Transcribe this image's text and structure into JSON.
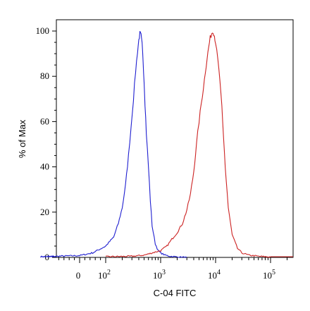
{
  "chart_data": {
    "type": "line",
    "title": "",
    "xlabel": "C-04 FITC",
    "ylabel": "% of Max",
    "xscale": "biexponential",
    "xlim": [
      -200,
      200000
    ],
    "ylim": [
      0,
      102
    ],
    "grid": false,
    "legend": "none",
    "y_ticks": [
      "0",
      "20",
      "40",
      "60",
      "80",
      "100"
    ],
    "y_tick_values": [
      0,
      20,
      40,
      60,
      80,
      100
    ],
    "x_ticks": [
      {
        "value": 0,
        "base": "0",
        "exp": ""
      },
      {
        "value": 100,
        "base": "10",
        "exp": "2"
      },
      {
        "value": 1000,
        "base": "10",
        "exp": "3"
      },
      {
        "value": 10000,
        "base": "10",
        "exp": "4"
      },
      {
        "value": 100000,
        "base": "10",
        "exp": "5"
      }
    ],
    "series": [
      {
        "color": "#1f1fd0",
        "x": [
          -150,
          0,
          50,
          100,
          140,
          170,
          200,
          230,
          260,
          290,
          320,
          350,
          380,
          400,
          420,
          440,
          460,
          480,
          500,
          520,
          550,
          600,
          650,
          700,
          800,
          900,
          1000,
          1200,
          1500,
          2000,
          3000
        ],
        "y": [
          0.3,
          0.8,
          2,
          5,
          9,
          15,
          22,
          32,
          45,
          58,
          70,
          82,
          91,
          96,
          99,
          98,
          94,
          87,
          78,
          68,
          55,
          40,
          25,
          14,
          6,
          3,
          2,
          1,
          0.5,
          0.2,
          0
        ]
      },
      {
        "color": "#cc2222",
        "x": [
          100,
          300,
          500,
          700,
          1000,
          1300,
          1600,
          2000,
          2500,
          3000,
          3500,
          4000,
          4500,
          5000,
          5500,
          6000,
          6500,
          7000,
          7500,
          8000,
          8500,
          9000,
          9500,
          10000,
          11000,
          12000,
          13000,
          14000,
          15000,
          17000,
          20000,
          25000,
          30000,
          40000,
          60000,
          100000
        ],
        "y": [
          0.3,
          0.5,
          1,
          2,
          3,
          5,
          8,
          11,
          15,
          21,
          28,
          38,
          50,
          60,
          68,
          75,
          82,
          88,
          93,
          97,
          99,
          100,
          98,
          95,
          87,
          78,
          66,
          52,
          40,
          22,
          10,
          4,
          2,
          1,
          0.5,
          0.2
        ]
      }
    ]
  }
}
